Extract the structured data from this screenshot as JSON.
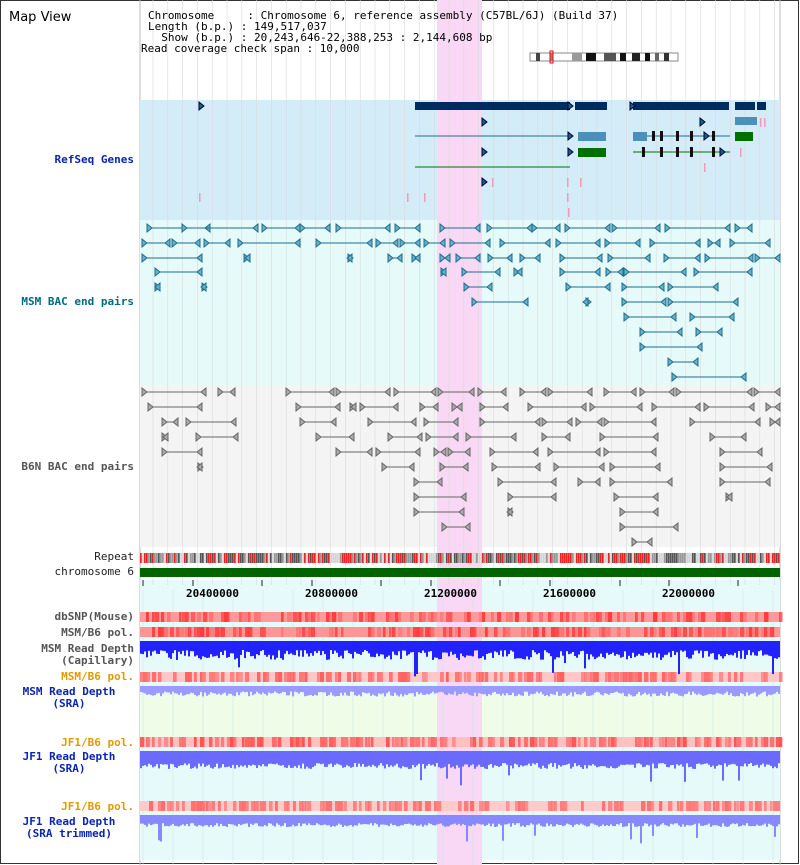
{
  "title": "Map View",
  "info": {
    "chromosome": "Chromosome     : Chromosome 6, reference assembly (C57BL/6J) (Build 37)",
    "length": "Length (b.p.) : 149,517,037",
    "show": "  Show (b.p.) : 20,243,646-22,388,253 : 2,144,608 bp",
    "coverage": "Read coverage check span : 10,000"
  },
  "tracks": {
    "refseq": "RefSeq Genes",
    "msm_bac": "MSM BAC end pairs",
    "b6n_bac": "B6N BAC end pairs",
    "repeat": "Repeat",
    "chromosome": "chromosome 6",
    "dbsnp": "dbSNP(Mouse)",
    "msm_b6_pol_1": "MSM/B6 pol.",
    "msm_read_depth_cap": "MSM Read Depth\n(Capillary)",
    "msm_b6_pol_2": "MSM/B6 pol.",
    "msm_read_depth_sra": "MSM Read Depth\n(SRA)",
    "jf1_b6_pol_1": "JF1/B6 pol.",
    "jf1_read_depth_sra": "JF1 Read Depth\n(SRA)",
    "jf1_b6_pol_2": "JF1/B6 pol.",
    "jf1_read_depth_trim": "JF1 Read Depth\n(SRA trimmed)"
  },
  "axis": {
    "ticks": [
      "20400000",
      "20800000",
      "21200000",
      "21600000",
      "22000000"
    ]
  },
  "colors": {
    "highlight": "#f8d8f4",
    "refseq_bg": "#d4ecf8",
    "msm_bg": "#e6fafa",
    "b6n_bg": "#f4f4f4",
    "sra_bg": "#eefce8",
    "chromosome_bar": "#006400",
    "gene_dark": "#002a62",
    "gene_teal": "#4a90b8",
    "gene_green": "#007000",
    "msm_line": "#1a6e8e",
    "b6n_line": "#666666",
    "depth_blue": "#2222ff",
    "depth_light": "#8888ff",
    "snp_red": "#ff3b3b"
  }
}
